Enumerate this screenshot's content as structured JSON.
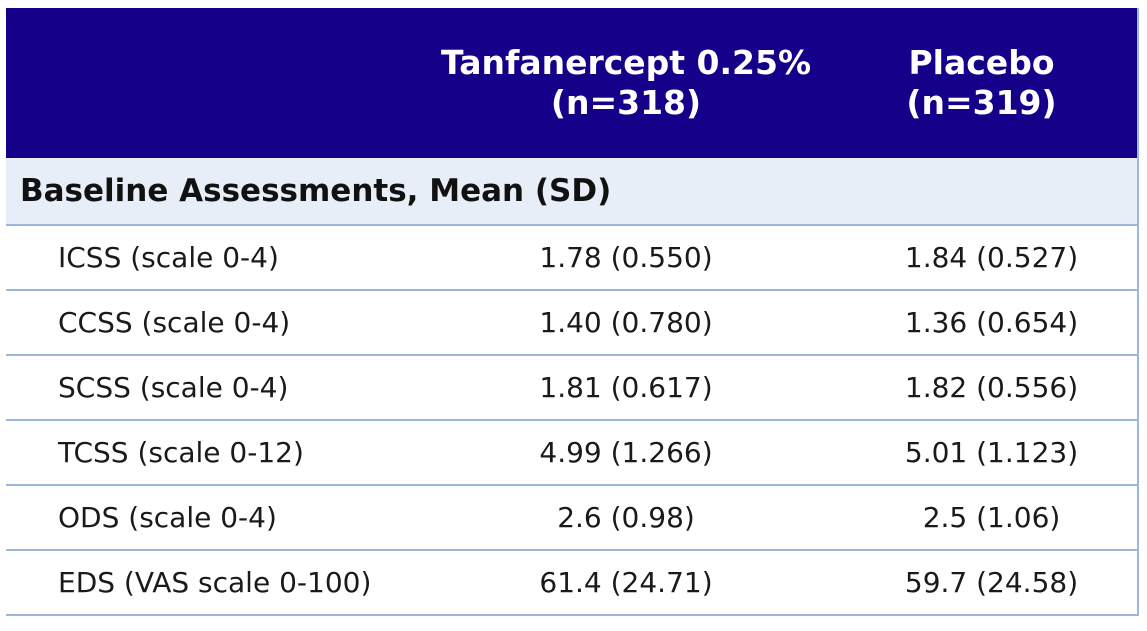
{
  "header": {
    "col1": "",
    "col2_line1": "Tanfanercept 0.25%",
    "col2_line2": "(n=318)",
    "col3_line1": "Placebo",
    "col3_line2": "(n=319)"
  },
  "section_title": "Baseline Assessments, Mean (SD)",
  "rows": [
    {
      "label": "ICSS (scale 0-4)",
      "tanfanercept": "1.78 (0.550)",
      "placebo": "1.84 (0.527)"
    },
    {
      "label": "CCSS (scale 0-4)",
      "tanfanercept": "1.40 (0.780)",
      "placebo": "1.36 (0.654)"
    },
    {
      "label": "SCSS (scale 0-4)",
      "tanfanercept": "1.81 (0.617)",
      "placebo": "1.82 (0.556)"
    },
    {
      "label": "TCSS (scale 0-12)",
      "tanfanercept": "4.99 (1.266)",
      "placebo": "5.01 (1.123)"
    },
    {
      "label": "ODS (scale 0-4)",
      "tanfanercept": "2.6 (0.98)",
      "placebo": "2.5 (1.06)"
    },
    {
      "label": "EDS (VAS scale 0-100)",
      "tanfanercept": "61.4 (24.71)",
      "placebo": "59.7 (24.58)"
    }
  ],
  "colors": {
    "header_bg": "#140089",
    "section_bg": "#e8eef8",
    "grid_line": "#9db6dc"
  }
}
